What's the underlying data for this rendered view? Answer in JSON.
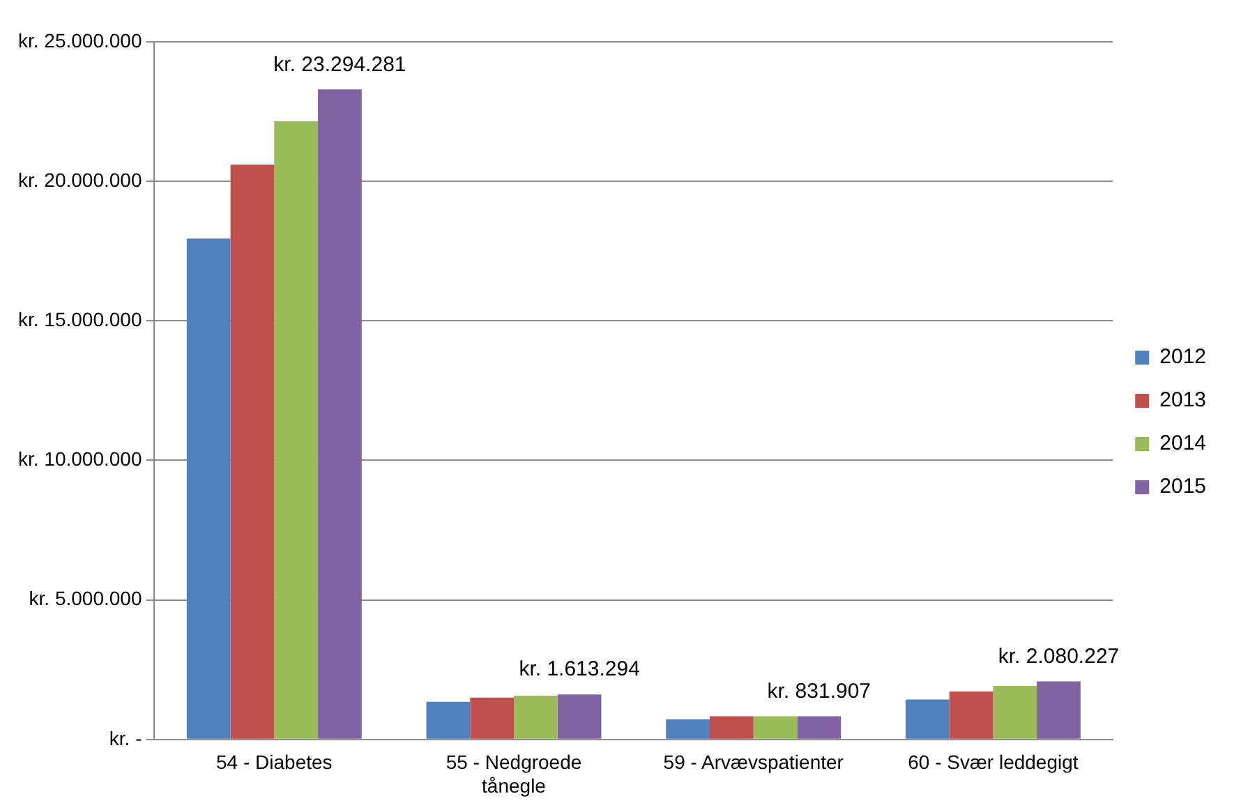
{
  "chart_data": {
    "type": "bar",
    "categories": [
      "54 - Diabetes",
      "55 - Nedgroede tånegle",
      "59 - Arvævspatienter",
      "60 - Svær leddegigt"
    ],
    "series": [
      {
        "name": "2012",
        "color": "#4f81bd",
        "values": [
          17950000,
          1350000,
          720000,
          1430000
        ]
      },
      {
        "name": "2013",
        "color": "#c0504d",
        "values": [
          20600000,
          1500000,
          830000,
          1720000
        ]
      },
      {
        "name": "2014",
        "color": "#9bbb59",
        "values": [
          22150000,
          1570000,
          830000,
          1920000
        ]
      },
      {
        "name": "2015",
        "color": "#8064a2",
        "values": [
          23294281,
          1613294,
          831907,
          2080227
        ],
        "value_labels": [
          "kr. 23.294.281",
          "kr. 1.613.294",
          "kr. 831.907",
          "kr. 2.080.227"
        ]
      }
    ],
    "ylim": [
      0,
      25000000
    ],
    "yticks": [
      {
        "value": 0,
        "label": "kr. -"
      },
      {
        "value": 5000000,
        "label": "kr. 5.000.000"
      },
      {
        "value": 10000000,
        "label": "kr. 10.000.000"
      },
      {
        "value": 15000000,
        "label": "kr. 15.000.000"
      },
      {
        "value": 20000000,
        "label": "kr. 20.000.000"
      },
      {
        "value": 25000000,
        "label": "kr. 25.000.000"
      }
    ],
    "grid": "y",
    "legend": "right"
  }
}
